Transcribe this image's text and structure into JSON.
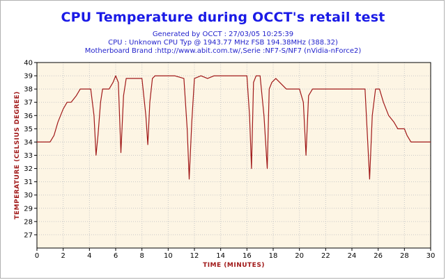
{
  "header": {
    "title": "CPU Temperature during OCCT's retail test",
    "subtitle_1": "Generated by OCCT : 27/03/05 10:25:39",
    "subtitle_2": "CPU : Unknown CPU Typ @ 1943.77 MHz FSB 194.38MHz (388.32)",
    "subtitle_3": "Motherboard Brand :http://www.abit.com.tw/,Serie :NF7-S/NF7 (nVidia-nForce2)"
  },
  "chart_data": {
    "type": "line",
    "title": "CPU Temperature during OCCT's retail test",
    "xlabel": "Time (minutes)",
    "ylabel": "Temperature (celsius degree)",
    "xlim": [
      0,
      30
    ],
    "ylim": [
      26,
      40
    ],
    "xticks": [
      0,
      2,
      4,
      6,
      8,
      10,
      12,
      14,
      16,
      18,
      20,
      22,
      24,
      26,
      28,
      30
    ],
    "yticks": [
      27,
      28,
      29,
      30,
      31,
      32,
      33,
      34,
      35,
      36,
      37,
      38,
      39,
      40
    ],
    "grid": true,
    "background": "#fdf5e4",
    "line_color": "#a01818",
    "series": [
      {
        "values_x": [
          0,
          1.0,
          1.3,
          1.6,
          2.0,
          2.3,
          2.6,
          3.0,
          3.3,
          4.1,
          4.35,
          4.5,
          4.65,
          4.85,
          5.0,
          5.5,
          5.8,
          6.0,
          6.2,
          6.4,
          6.6,
          6.8,
          7.0,
          7.5,
          8.0,
          8.3,
          8.45,
          8.6,
          8.8,
          9.0,
          9.5,
          10.5,
          11.2,
          11.45,
          11.6,
          11.8,
          12.0,
          12.5,
          13.0,
          13.5,
          14.0,
          16.0,
          16.2,
          16.35,
          16.5,
          16.7,
          17.0,
          17.3,
          17.55,
          17.7,
          17.9,
          18.2,
          18.5,
          19.0,
          20.0,
          20.3,
          20.5,
          20.7,
          21.0,
          22.0,
          24.0,
          25.0,
          25.15,
          25.35,
          25.55,
          25.8,
          26.1,
          26.4,
          26.8,
          27.2,
          27.5,
          28.0,
          28.2,
          28.5,
          30.0
        ],
        "values_y": [
          34,
          34,
          34.5,
          35.5,
          36.5,
          37,
          37,
          37.5,
          38,
          38,
          36,
          33,
          34.5,
          37,
          38,
          38,
          38.5,
          39,
          38.5,
          33.2,
          37.5,
          38.8,
          38.8,
          38.8,
          38.8,
          36,
          33.8,
          37,
          38.8,
          39,
          39,
          39,
          38.8,
          35,
          31.2,
          35.5,
          38.8,
          39,
          38.8,
          39,
          39,
          39,
          36,
          32,
          38.5,
          39,
          39,
          36,
          32,
          38,
          38.5,
          38.8,
          38.5,
          38,
          38,
          37,
          33,
          37.5,
          38,
          38,
          38,
          38,
          35,
          31.2,
          36,
          38,
          38,
          37,
          36,
          35.5,
          35,
          35,
          34.5,
          34,
          34
        ]
      }
    ]
  }
}
